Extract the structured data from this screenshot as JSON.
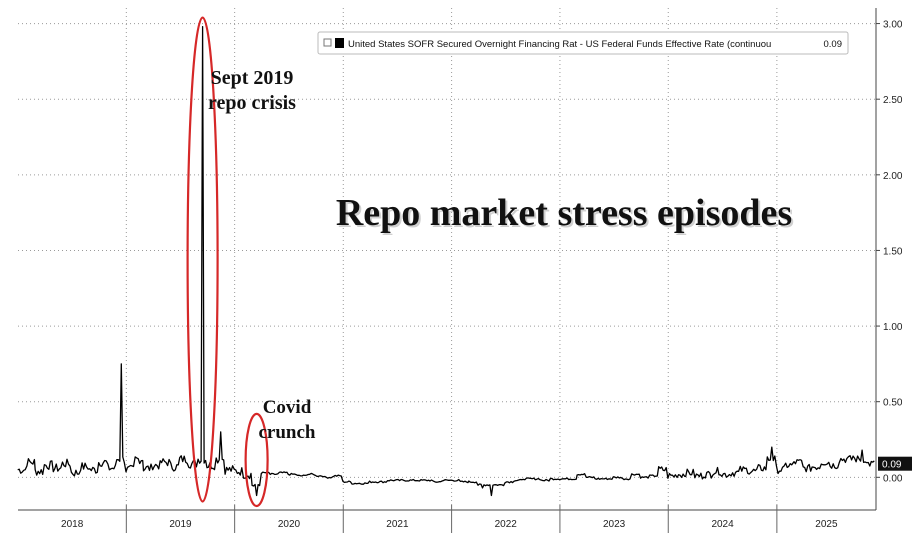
{
  "chart_data": {
    "type": "line",
    "title": "Repo market stress episodes",
    "xlabel": "",
    "ylabel": "",
    "x_range": [
      "2018-01",
      "2025-11"
    ],
    "ylim": [
      -0.15,
      3.05
    ],
    "y_ticks": [
      "3.00",
      "2.50",
      "2.00",
      "1.50",
      "1.00",
      "0.50",
      "0.00"
    ],
    "y_tick_values": [
      3.0,
      2.5,
      2.0,
      1.5,
      1.0,
      0.5,
      0.0
    ],
    "x_tick_labels": [
      "2018",
      "2019",
      "2020",
      "2021",
      "2022",
      "2023",
      "2024",
      "2025"
    ],
    "grid": true,
    "legend_position": "top-right",
    "series": [
      {
        "name": "United States SOFR Secured Overnight Financing Rat - US Federal Funds Effective Rate (continuou",
        "last_value": 0.09,
        "last_value_label": "0.09",
        "color": "#000000",
        "x": [
          "2018-01",
          "2018-02",
          "2018-03",
          "2018-04",
          "2018-05",
          "2018-06",
          "2018-07",
          "2018-08",
          "2018-09",
          "2018-10",
          "2018-11",
          "2018-12",
          "2019-01",
          "2019-02",
          "2019-03",
          "2019-04",
          "2019-05",
          "2019-06",
          "2019-07",
          "2019-08",
          "2019-09",
          "2019-10",
          "2019-11",
          "2019-12",
          "2020-01",
          "2020-02",
          "2020-03",
          "2020-04",
          "2020-05",
          "2020-06",
          "2020-07",
          "2020-08",
          "2020-09",
          "2020-10",
          "2020-11",
          "2020-12",
          "2021-01",
          "2021-02",
          "2021-03",
          "2021-04",
          "2021-05",
          "2021-06",
          "2021-07",
          "2021-08",
          "2021-09",
          "2021-10",
          "2021-11",
          "2021-12",
          "2022-01",
          "2022-02",
          "2022-03",
          "2022-04",
          "2022-05",
          "2022-06",
          "2022-07",
          "2022-08",
          "2022-09",
          "2022-10",
          "2022-11",
          "2022-12",
          "2023-01",
          "2023-02",
          "2023-03",
          "2023-04",
          "2023-05",
          "2023-06",
          "2023-07",
          "2023-08",
          "2023-09",
          "2023-10",
          "2023-11",
          "2023-12",
          "2024-01",
          "2024-02",
          "2024-03",
          "2024-04",
          "2024-05",
          "2024-06",
          "2024-07",
          "2024-08",
          "2024-09",
          "2024-10",
          "2024-11",
          "2024-12",
          "2025-01",
          "2025-02",
          "2025-03",
          "2025-04",
          "2025-05",
          "2025-06",
          "2025-07",
          "2025-08",
          "2025-09",
          "2025-10",
          "2025-11"
        ],
        "values": [
          0.05,
          0.1,
          0.04,
          0.08,
          0.06,
          0.09,
          0.03,
          0.07,
          0.05,
          0.1,
          0.06,
          0.75,
          0.05,
          0.12,
          0.06,
          0.08,
          0.1,
          0.07,
          0.12,
          0.09,
          2.98,
          0.08,
          0.3,
          0.05,
          0.04,
          0.02,
          -0.12,
          0.03,
          0.02,
          0.03,
          0.02,
          0.01,
          0.02,
          0.01,
          0.0,
          0.01,
          -0.03,
          -0.04,
          -0.04,
          -0.03,
          -0.03,
          -0.02,
          -0.02,
          -0.02,
          -0.02,
          -0.02,
          -0.03,
          -0.02,
          -0.02,
          -0.03,
          -0.03,
          -0.07,
          -0.12,
          -0.05,
          -0.03,
          -0.02,
          -0.01,
          -0.01,
          -0.02,
          -0.01,
          -0.01,
          -0.01,
          0.02,
          0.0,
          -0.01,
          -0.01,
          0.0,
          -0.01,
          0.02,
          0.0,
          0.01,
          0.05,
          0.01,
          0.02,
          0.03,
          0.01,
          0.02,
          0.04,
          0.02,
          0.03,
          0.05,
          0.04,
          0.06,
          0.2,
          0.05,
          0.08,
          0.1,
          0.06,
          0.07,
          0.1,
          0.08,
          0.12,
          0.14,
          0.18,
          0.09
        ]
      }
    ],
    "annotations": [
      {
        "id": "sept2019",
        "lines": [
          "Sept 2019",
          "repo crisis"
        ],
        "x": "2019-09",
        "y_low": -0.12,
        "y_high": 3.0
      },
      {
        "id": "covid",
        "lines": [
          "Covid",
          "crunch"
        ],
        "x": "2020-03",
        "y_low": -0.15,
        "y_high": 0.38
      }
    ]
  }
}
